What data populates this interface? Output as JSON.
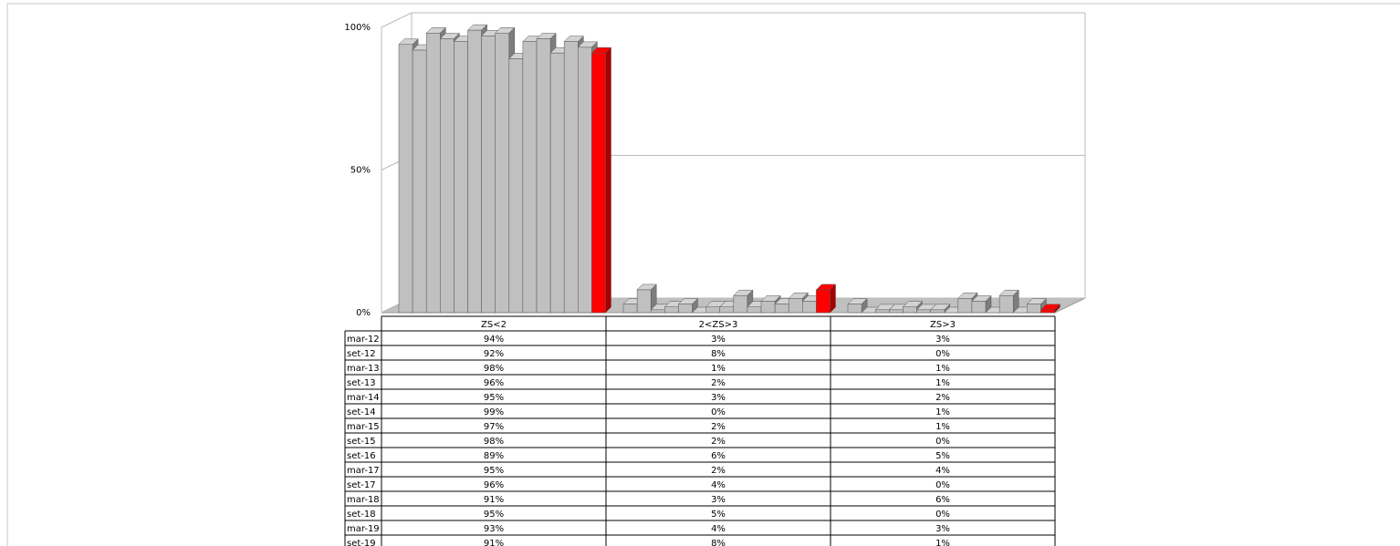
{
  "chart_data": {
    "type": "bar3d",
    "categories": [
      "ZS<2",
      "2<ZS>3",
      "ZS>3"
    ],
    "ylim": [
      0,
      100
    ],
    "yticks": [
      {
        "value": 0,
        "label": "0%"
      },
      {
        "value": 50,
        "label": "50%"
      },
      {
        "value": 100,
        "label": "100%"
      }
    ],
    "grid": true,
    "series": [
      {
        "name": "mar-12",
        "color": "#c0c0c0",
        "values": [
          94,
          3,
          3
        ],
        "value_labels": [
          "94%",
          "3%",
          "3%"
        ]
      },
      {
        "name": "set-12",
        "color": "#c0c0c0",
        "values": [
          92,
          8,
          0
        ],
        "value_labels": [
          "92%",
          "8%",
          "0%"
        ]
      },
      {
        "name": "mar-13",
        "color": "#c0c0c0",
        "values": [
          98,
          1,
          1
        ],
        "value_labels": [
          "98%",
          "1%",
          "1%"
        ]
      },
      {
        "name": "set-13",
        "color": "#c0c0c0",
        "values": [
          96,
          2,
          1
        ],
        "value_labels": [
          "96%",
          "2%",
          "1%"
        ]
      },
      {
        "name": "mar-14",
        "color": "#c0c0c0",
        "values": [
          95,
          3,
          2
        ],
        "value_labels": [
          "95%",
          "3%",
          "2%"
        ]
      },
      {
        "name": "set-14",
        "color": "#c0c0c0",
        "values": [
          99,
          0,
          1
        ],
        "value_labels": [
          "99%",
          "0%",
          "1%"
        ]
      },
      {
        "name": "mar-15",
        "color": "#c0c0c0",
        "values": [
          97,
          2,
          1
        ],
        "value_labels": [
          "97%",
          "2%",
          "1%"
        ]
      },
      {
        "name": "set-15",
        "color": "#c0c0c0",
        "values": [
          98,
          2,
          0
        ],
        "value_labels": [
          "98%",
          "2%",
          "0%"
        ]
      },
      {
        "name": "set-16",
        "color": "#c0c0c0",
        "values": [
          89,
          6,
          5
        ],
        "value_labels": [
          "89%",
          "6%",
          "5%"
        ]
      },
      {
        "name": "mar-17",
        "color": "#c0c0c0",
        "values": [
          95,
          2,
          4
        ],
        "value_labels": [
          "95%",
          "2%",
          "4%"
        ]
      },
      {
        "name": "set-17",
        "color": "#c0c0c0",
        "values": [
          96,
          4,
          0
        ],
        "value_labels": [
          "96%",
          "4%",
          "0%"
        ]
      },
      {
        "name": "mar-18",
        "color": "#c0c0c0",
        "values": [
          91,
          3,
          6
        ],
        "value_labels": [
          "91%",
          "3%",
          "6%"
        ]
      },
      {
        "name": "set-18",
        "color": "#c0c0c0",
        "values": [
          95,
          5,
          0
        ],
        "value_labels": [
          "95%",
          "5%",
          "0%"
        ]
      },
      {
        "name": "mar-19",
        "color": "#c0c0c0",
        "values": [
          93,
          4,
          3
        ],
        "value_labels": [
          "93%",
          "4%",
          "3%"
        ]
      },
      {
        "name": "set-19",
        "color": "#ff0000",
        "values": [
          91,
          8,
          1
        ],
        "value_labels": [
          "91%",
          "8%",
          "1%"
        ]
      }
    ]
  }
}
